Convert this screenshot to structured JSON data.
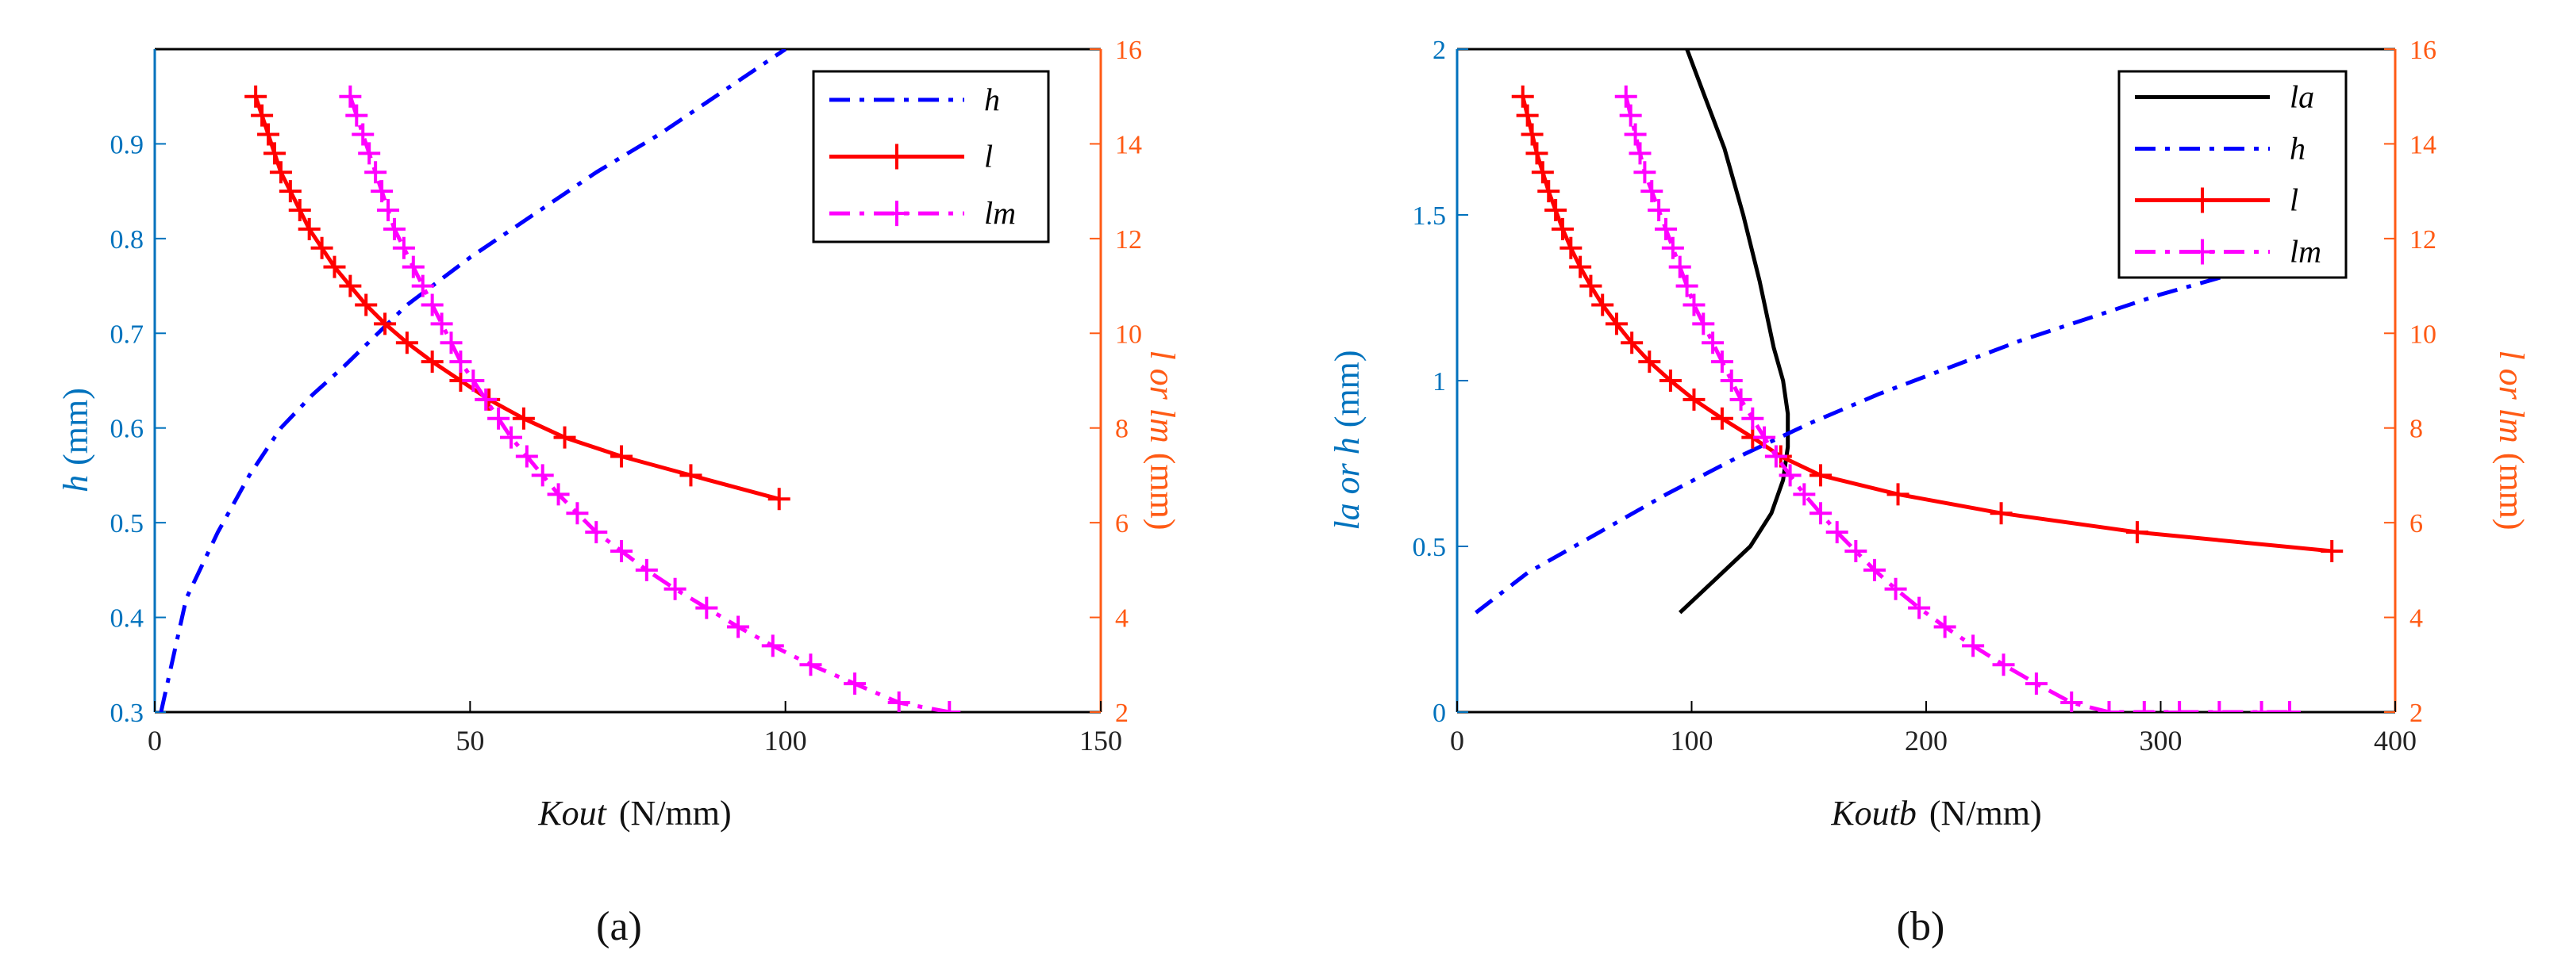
{
  "chart_data": [
    {
      "type": "line",
      "caption": "(a)",
      "xlabel": "Kout",
      "xunit": "(N/mm)",
      "xlim": [
        0,
        150
      ],
      "xticks": [
        "0",
        "50",
        "100",
        "150"
      ],
      "ylabel_left": "h",
      "yunit_left": "(mm)",
      "ylim_left": [
        0.3,
        1.0
      ],
      "yticks_left": [
        "0.3",
        "0.4",
        "0.5",
        "0.6",
        "0.7",
        "0.8",
        "0.9"
      ],
      "ylabel_right": "l or lm",
      "yunit_right": "(mm)",
      "ylim_right": [
        2,
        16
      ],
      "yticks_right": [
        "2",
        "4",
        "6",
        "8",
        "10",
        "12",
        "14",
        "16"
      ],
      "legend": [
        "h",
        "l",
        "lm"
      ],
      "series": [
        {
          "name": "h",
          "axis": "left",
          "style": "dashdot",
          "color": "#0000ff",
          "x": [
            1,
            5,
            10,
            15,
            20,
            25,
            30,
            40,
            50,
            60,
            70,
            80,
            90,
            100
          ],
          "y": [
            0.3,
            0.42,
            0.49,
            0.55,
            0.6,
            0.635,
            0.665,
            0.73,
            0.78,
            0.825,
            0.87,
            0.91,
            0.955,
            1.0
          ]
        },
        {
          "name": "l",
          "axis": "right",
          "style": "solid-plus",
          "color": "#ff0000",
          "x": [
            16,
            17,
            18,
            19,
            20,
            21.5,
            23,
            24.5,
            26.5,
            28.5,
            31,
            33.5,
            36.5,
            40,
            44,
            48.5,
            53,
            58.5,
            65,
            74,
            85,
            99
          ],
          "y": [
            15,
            14.6,
            14.2,
            13.8,
            13.4,
            13,
            12.6,
            12.2,
            11.8,
            11.4,
            11,
            10.6,
            10.2,
            9.8,
            9.4,
            9,
            8.6,
            8.2,
            7.8,
            7.4,
            7,
            6.5
          ]
        },
        {
          "name": "lm",
          "axis": "right",
          "style": "dashdot-plus",
          "color": "#ff00ff",
          "x": [
            31,
            32,
            33,
            34,
            35,
            36,
            37,
            38,
            39.5,
            41,
            42.5,
            44,
            45.5,
            47,
            48.5,
            50.5,
            52.5,
            54.5,
            56.5,
            59,
            61.5,
            64,
            67,
            70,
            74,
            78,
            82.5,
            87.5,
            92.5,
            98,
            104,
            111,
            118,
            126
          ],
          "y": [
            15,
            14.6,
            14.2,
            13.8,
            13.4,
            13,
            12.6,
            12.2,
            11.8,
            11.4,
            11,
            10.6,
            10.2,
            9.8,
            9.4,
            9,
            8.6,
            8.2,
            7.8,
            7.4,
            7,
            6.6,
            6.2,
            5.8,
            5.4,
            5,
            4.6,
            4.2,
            3.8,
            3.4,
            3,
            2.6,
            2.2,
            2
          ]
        }
      ]
    },
    {
      "type": "line",
      "caption": "(b)",
      "xlabel": "Koutb",
      "xunit": "(N/mm)",
      "xlim": [
        0,
        400
      ],
      "xticks": [
        "0",
        "100",
        "200",
        "300",
        "400"
      ],
      "ylabel_left": "la or h",
      "yunit_left": "(mm)",
      "ylim_left": [
        0,
        2
      ],
      "yticks_left": [
        "0",
        "0.5",
        "1",
        "1.5",
        "2"
      ],
      "ylabel_right": "l or lm",
      "yunit_right": "(mm)",
      "ylim_right": [
        2,
        16
      ],
      "yticks_right": [
        "2",
        "4",
        "6",
        "8",
        "10",
        "12",
        "14",
        "16"
      ],
      "legend": [
        "la",
        "h",
        "l",
        "lm"
      ],
      "series": [
        {
          "name": "la",
          "axis": "left",
          "style": "solid",
          "color": "#000000",
          "x": [
            95,
            110,
            125,
            134,
            139,
            141,
            141,
            139,
            135,
            129,
            122,
            114,
            106,
            98
          ],
          "y": [
            0.3,
            0.4,
            0.5,
            0.6,
            0.7,
            0.8,
            0.9,
            1.0,
            1.1,
            1.3,
            1.5,
            1.7,
            1.85,
            2.0
          ]
        },
        {
          "name": "h",
          "axis": "left",
          "style": "dashdot",
          "color": "#0000ff",
          "x": [
            8,
            30,
            60,
            90,
            120,
            150,
            180,
            210,
            240,
            270,
            300,
            330
          ],
          "y": [
            0.3,
            0.42,
            0.54,
            0.66,
            0.77,
            0.87,
            0.96,
            1.04,
            1.12,
            1.19,
            1.26,
            1.32
          ]
        },
        {
          "name": "l",
          "axis": "right",
          "style": "solid-plus",
          "color": "#ff0000",
          "x": [
            28,
            30,
            32,
            34,
            36.5,
            39,
            42,
            45,
            48.5,
            52.5,
            57,
            62,
            68,
            74.5,
            82,
            91,
            101,
            113,
            126,
            138,
            155,
            188,
            232,
            290,
            373
          ],
          "y": [
            15,
            14.6,
            14.2,
            13.8,
            13.4,
            13,
            12.6,
            12.2,
            11.8,
            11.4,
            11,
            10.6,
            10.2,
            9.8,
            9.4,
            9,
            8.6,
            8.2,
            7.8,
            7.4,
            7,
            6.6,
            6.2,
            5.8,
            5.4
          ]
        },
        {
          "name": "lm",
          "axis": "right",
          "style": "dashdot-plus",
          "color": "#ff00ff",
          "x": [
            72,
            74,
            76,
            78,
            80,
            83,
            86,
            89,
            92,
            95,
            98,
            101,
            105,
            109,
            113,
            117,
            121,
            126,
            131,
            136,
            142,
            148,
            155,
            162,
            170,
            178,
            187,
            197,
            208,
            220,
            233,
            247,
            262,
            278,
            293,
            308,
            325,
            343,
            355
          ],
          "y": [
            15,
            14.6,
            14.2,
            13.8,
            13.4,
            13,
            12.6,
            12.2,
            11.8,
            11.4,
            11,
            10.6,
            10.2,
            9.8,
            9.4,
            9,
            8.6,
            8.2,
            7.8,
            7.4,
            7,
            6.6,
            6.2,
            5.8,
            5.4,
            5,
            4.6,
            4.2,
            3.8,
            3.4,
            3,
            2.6,
            2.2,
            2,
            2,
            2,
            2,
            2,
            2
          ]
        }
      ]
    }
  ],
  "colors": {
    "left_axis": "#0072bd",
    "right_axis": "#ff5a14",
    "frame": "#000000"
  }
}
